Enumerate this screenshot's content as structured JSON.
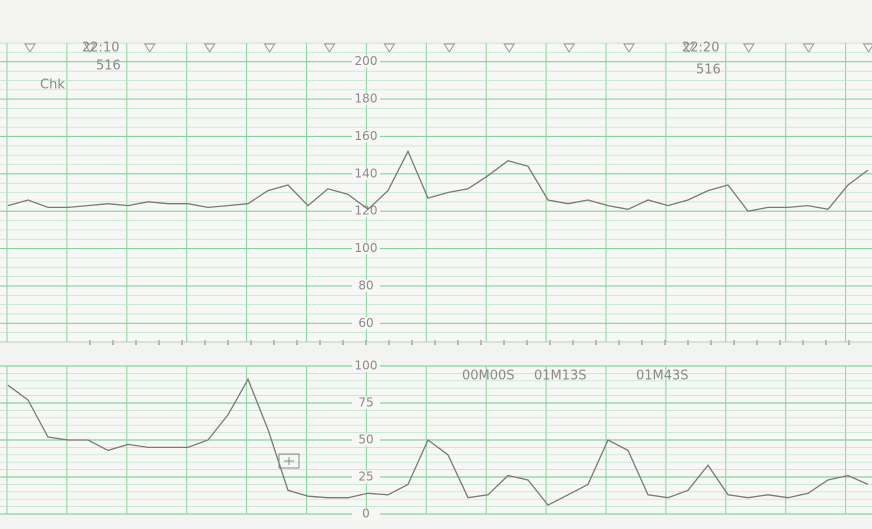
{
  "chart_data": [
    {
      "type": "line",
      "annotations": [
        "22:10",
        "516",
        "Chk",
        "22:20",
        "516"
      ],
      "values": [
        123,
        126,
        122,
        122,
        123,
        124,
        123,
        125,
        124,
        124,
        122,
        123,
        124,
        131,
        134,
        123,
        132,
        129,
        121,
        131,
        152,
        127,
        130,
        132,
        139,
        147,
        144,
        126,
        124,
        126,
        123,
        121,
        126,
        123,
        126,
        131,
        134,
        120,
        122,
        122,
        123,
        121,
        134,
        142
      ],
      "color": "#7a7a72",
      "ylim": [
        50,
        210
      ],
      "yticks": [
        60,
        80,
        100,
        120,
        140,
        160,
        180,
        200
      ],
      "grid": true
    },
    {
      "type": "line",
      "annotations": [
        "00M00S",
        "01M13S",
        "01M43S"
      ],
      "values": [
        87,
        77,
        52,
        50,
        50,
        43,
        47,
        45,
        45,
        45,
        50,
        67,
        91,
        57,
        16,
        12,
        11,
        11,
        14,
        13,
        20,
        50,
        40,
        11,
        13,
        26,
        23,
        6,
        13,
        20,
        50,
        43,
        13,
        11,
        16,
        33,
        13,
        11,
        13,
        11,
        14,
        23,
        26,
        20
      ],
      "color": "#7a7a72",
      "ylim": [
        0,
        100
      ],
      "yticks": [
        0,
        25,
        50,
        75,
        100
      ],
      "grid": true
    }
  ]
}
